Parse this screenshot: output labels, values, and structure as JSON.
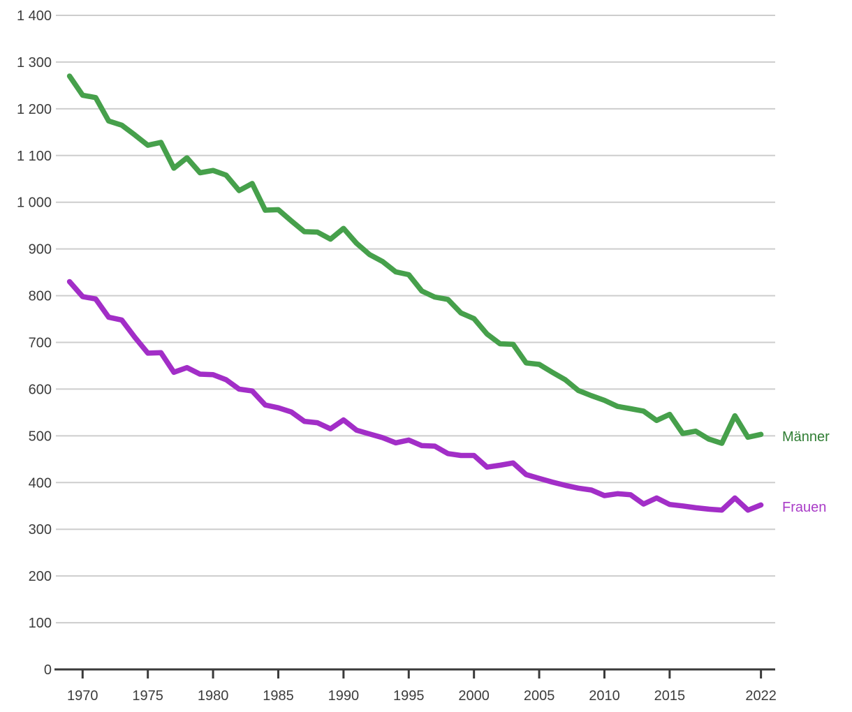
{
  "chart_data": {
    "type": "line",
    "title": "",
    "xlabel": "",
    "ylabel": "",
    "x": [
      1969,
      1970,
      1971,
      1972,
      1973,
      1974,
      1975,
      1976,
      1977,
      1978,
      1979,
      1980,
      1981,
      1982,
      1983,
      1984,
      1985,
      1986,
      1987,
      1988,
      1989,
      1990,
      1991,
      1992,
      1993,
      1994,
      1995,
      1996,
      1997,
      1998,
      1999,
      2000,
      2001,
      2002,
      2003,
      2004,
      2005,
      2006,
      2007,
      2008,
      2009,
      2010,
      2011,
      2012,
      2013,
      2014,
      2015,
      2016,
      2017,
      2018,
      2019,
      2020,
      2021,
      2022
    ],
    "x_tick_labels": [
      "1970",
      "1975",
      "1980",
      "1985",
      "1990",
      "1995",
      "2000",
      "2005",
      "2010",
      "2015",
      "2022"
    ],
    "x_tick_years": [
      1970,
      1975,
      1980,
      1985,
      1990,
      1995,
      2000,
      2005,
      2010,
      2015,
      2022
    ],
    "ylim": [
      0,
      1400
    ],
    "y_tick_step": 100,
    "y_label_format": "space-thousands",
    "grid": "horizontal-only",
    "gridline_color": "#cdcdcd",
    "axis_color": "#3a3a3a",
    "tick_label_color": "#3c3c3c",
    "legend_position": "right-end-of-lines",
    "series": [
      {
        "name": "Männer",
        "color": "#46A04B",
        "label_color": "#2F7D33",
        "values": [
          1270,
          1229,
          1224,
          1174,
          1165,
          1144,
          1122,
          1128,
          1073,
          1095,
          1063,
          1068,
          1058,
          1025,
          1040,
          983,
          984,
          960,
          937,
          936,
          921,
          944,
          912,
          888,
          873,
          851,
          845,
          810,
          797,
          792,
          763,
          751,
          718,
          697,
          696,
          656,
          653,
          636,
          620,
          597,
          586,
          576,
          563,
          558,
          553,
          533,
          546,
          505,
          510,
          493,
          484,
          543,
          497,
          503
        ]
      },
      {
        "name": "Frauen",
        "color": "#A22EC7",
        "label_color": "#A93BC7",
        "values": [
          830,
          798,
          793,
          754,
          748,
          711,
          677,
          678,
          636,
          646,
          632,
          631,
          620,
          600,
          596,
          566,
          560,
          551,
          531,
          528,
          515,
          534,
          512,
          504,
          496,
          485,
          491,
          479,
          478,
          462,
          458,
          458,
          433,
          437,
          442,
          417,
          409,
          401,
          394,
          388,
          384,
          372,
          376,
          374,
          354,
          367,
          353,
          350,
          346,
          343,
          341,
          367,
          341,
          352
        ]
      }
    ]
  }
}
